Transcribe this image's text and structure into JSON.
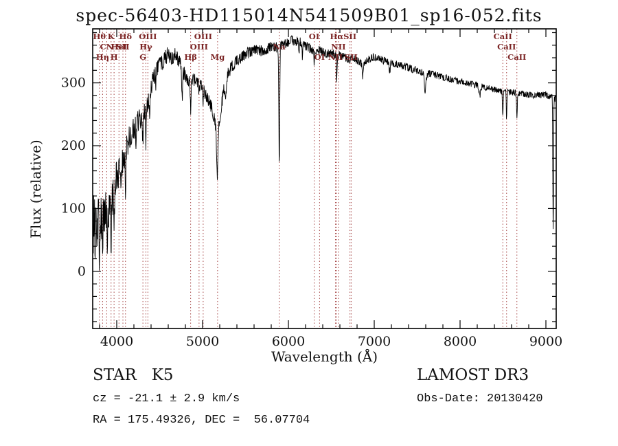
{
  "title": "spec-56403-HD115014N541509B01_sp16-052.fits",
  "footer": {
    "class_label": "STAR   K5",
    "survey": "LAMOST DR3",
    "cz": "cz = -21.1 ± 2.9 km/s",
    "obs_date": "Obs-Date: 20130420",
    "ra_dec": "RA = 175.49326, DEC =  56.07704"
  },
  "chart_data": {
    "type": "line",
    "title": "spec-56403-HD115014N541509B01_sp16-052.fits",
    "xlabel": "Wavelength (Å)",
    "ylabel": "Flux (relative)",
    "xlim": [
      3720,
      9120
    ],
    "ylim": [
      -91,
      386
    ],
    "x_major_ticks": [
      4000,
      5000,
      6000,
      7000,
      8000,
      9000
    ],
    "y_major_ticks": [
      0,
      100,
      200,
      300
    ],
    "x_minor_step": 200,
    "y_minor_step": 20,
    "grid": false,
    "legend": "none",
    "line_color": "#000000",
    "frame_color": "#000000",
    "marker_line_color": "#a34040",
    "spectral_lines": [
      {
        "label": "Hθ",
        "wl": 3798,
        "row": 0
      },
      {
        "label": "Hη",
        "wl": 3835,
        "row": 2
      },
      {
        "label": "CN",
        "wl": 3883,
        "row": 1
      },
      {
        "label": "K",
        "wl": 3934,
        "row": 0
      },
      {
        "label": "H",
        "wl": 3969,
        "row": 2
      },
      {
        "label": "HeI",
        "wl": 4026,
        "row": 1
      },
      {
        "label": "SII",
        "wl": 4072,
        "row": 1
      },
      {
        "label": "Hδ",
        "wl": 4102,
        "row": 0
      },
      {
        "label": "G",
        "wl": 4305,
        "row": 2
      },
      {
        "label": "Hγ",
        "wl": 4340,
        "row": 1
      },
      {
        "label": "OIII",
        "wl": 4363,
        "row": 0
      },
      {
        "label": "Hβ",
        "wl": 4861,
        "row": 2
      },
      {
        "label": "OIII",
        "wl": 4959,
        "row": 1
      },
      {
        "label": "OIII",
        "wl": 5007,
        "row": 0
      },
      {
        "label": "Mg",
        "wl": 5175,
        "row": 2
      },
      {
        "label": "Na",
        "wl": 5894,
        "row": 1
      },
      {
        "label": "OI",
        "wl": 6300,
        "row": 0
      },
      {
        "label": "OI",
        "wl": 6363,
        "row": 2
      },
      {
        "label": "NII",
        "wl": 6548,
        "row": 2
      },
      {
        "label": "Hα",
        "wl": 6563,
        "row": 0
      },
      {
        "label": "NII",
        "wl": 6583,
        "row": 1
      },
      {
        "label": "SII",
        "wl": 6717,
        "row": 0
      },
      {
        "label": "SII",
        "wl": 6731,
        "row": 2
      },
      {
        "label": "CaII",
        "wl": 8498,
        "row": 0
      },
      {
        "label": "CaII",
        "wl": 8542,
        "row": 1
      },
      {
        "label": "CaII",
        "wl": 8662,
        "row": 2
      }
    ],
    "spectrum": {
      "samples": 1500,
      "seed": 20130420,
      "anchors": [
        [
          3720,
          40
        ],
        [
          3735,
          90
        ],
        [
          3750,
          60
        ],
        [
          3770,
          85
        ],
        [
          3790,
          70
        ],
        [
          3820,
          85
        ],
        [
          3850,
          95
        ],
        [
          3880,
          88
        ],
        [
          3910,
          100
        ],
        [
          3940,
          110
        ],
        [
          3970,
          125
        ],
        [
          4000,
          150
        ],
        [
          4030,
          160
        ],
        [
          4060,
          170
        ],
        [
          4090,
          180
        ],
        [
          4120,
          200
        ],
        [
          4160,
          215
        ],
        [
          4200,
          228
        ],
        [
          4240,
          238
        ],
        [
          4280,
          244
        ],
        [
          4320,
          254
        ],
        [
          4360,
          268
        ],
        [
          4400,
          292
        ],
        [
          4440,
          314
        ],
        [
          4480,
          325
        ],
        [
          4520,
          331
        ],
        [
          4560,
          340
        ],
        [
          4600,
          346
        ],
        [
          4640,
          338
        ],
        [
          4680,
          345
        ],
        [
          4720,
          337
        ],
        [
          4760,
          324
        ],
        [
          4800,
          311
        ],
        [
          4840,
          304
        ],
        [
          4880,
          308
        ],
        [
          4920,
          304
        ],
        [
          4960,
          297
        ],
        [
          5000,
          291
        ],
        [
          5040,
          281
        ],
        [
          5080,
          269
        ],
        [
          5120,
          254
        ],
        [
          5160,
          224
        ],
        [
          5200,
          244
        ],
        [
          5240,
          284
        ],
        [
          5280,
          309
        ],
        [
          5320,
          321
        ],
        [
          5360,
          329
        ],
        [
          5400,
          335
        ],
        [
          5440,
          339
        ],
        [
          5480,
          343
        ],
        [
          5520,
          347
        ],
        [
          5560,
          349
        ],
        [
          5600,
          351
        ],
        [
          5640,
          352
        ],
        [
          5680,
          351
        ],
        [
          5720,
          353
        ],
        [
          5760,
          355
        ],
        [
          5800,
          357
        ],
        [
          5840,
          356
        ],
        [
          5880,
          357
        ],
        [
          5920,
          359
        ],
        [
          5960,
          362
        ],
        [
          6000,
          365
        ],
        [
          6040,
          369
        ],
        [
          6080,
          365
        ],
        [
          6120,
          367
        ],
        [
          6160,
          363
        ],
        [
          6200,
          359
        ],
        [
          6240,
          356
        ],
        [
          6280,
          353
        ],
        [
          6320,
          351
        ],
        [
          6360,
          352
        ],
        [
          6400,
          349
        ],
        [
          6440,
          346
        ],
        [
          6480,
          348
        ],
        [
          6520,
          346
        ],
        [
          6560,
          343
        ],
        [
          6600,
          344
        ],
        [
          6640,
          341
        ],
        [
          6680,
          339
        ],
        [
          6720,
          337
        ],
        [
          6760,
          339
        ],
        [
          6800,
          336
        ],
        [
          6840,
          331
        ],
        [
          6880,
          333
        ],
        [
          6920,
          336
        ],
        [
          6960,
          339
        ],
        [
          7000,
          341
        ],
        [
          7060,
          338
        ],
        [
          7120,
          335
        ],
        [
          7180,
          333
        ],
        [
          7240,
          331
        ],
        [
          7300,
          328
        ],
        [
          7360,
          326
        ],
        [
          7420,
          323
        ],
        [
          7480,
          321
        ],
        [
          7540,
          318
        ],
        [
          7600,
          313
        ],
        [
          7660,
          315
        ],
        [
          7720,
          312
        ],
        [
          7780,
          310
        ],
        [
          7840,
          308
        ],
        [
          7900,
          305
        ],
        [
          7960,
          303
        ],
        [
          8020,
          302
        ],
        [
          8080,
          300
        ],
        [
          8140,
          298
        ],
        [
          8200,
          296
        ],
        [
          8260,
          294
        ],
        [
          8320,
          292
        ],
        [
          8380,
          290
        ],
        [
          8440,
          288
        ],
        [
          8500,
          286
        ],
        [
          8560,
          285
        ],
        [
          8620,
          285
        ],
        [
          8680,
          283
        ],
        [
          8740,
          282
        ],
        [
          8800,
          281
        ],
        [
          8860,
          280
        ],
        [
          8920,
          280
        ],
        [
          8980,
          282
        ],
        [
          9040,
          279
        ],
        [
          9100,
          275
        ],
        [
          9120,
          274
        ]
      ],
      "absorption_lines": [
        [
          3798,
          35,
          4
        ],
        [
          3835,
          35,
          4
        ],
        [
          3889,
          30,
          4
        ],
        [
          3934,
          55,
          4
        ],
        [
          3969,
          55,
          4
        ],
        [
          4045,
          30,
          4
        ],
        [
          4102,
          60,
          4
        ],
        [
          4226,
          45,
          4
        ],
        [
          4305,
          38,
          6
        ],
        [
          4340,
          55,
          4
        ],
        [
          4383,
          35,
          4
        ],
        [
          4455,
          25,
          4
        ],
        [
          4763,
          45,
          6
        ],
        [
          4861,
          52,
          4
        ],
        [
          4959,
          18,
          3
        ],
        [
          5007,
          22,
          3
        ],
        [
          5172,
          78,
          7
        ],
        [
          5270,
          28,
          5
        ],
        [
          5894,
          193,
          5
        ],
        [
          6122,
          24,
          4
        ],
        [
          6162,
          20,
          4
        ],
        [
          6300,
          20,
          3
        ],
        [
          6563,
          46,
          4
        ],
        [
          6867,
          22,
          8
        ],
        [
          7180,
          14,
          8
        ],
        [
          7594,
          26,
          9
        ],
        [
          8230,
          16,
          8
        ],
        [
          8498,
          36,
          4
        ],
        [
          8542,
          44,
          4
        ],
        [
          8662,
          42,
          4
        ],
        [
          9085,
          220,
          4
        ]
      ],
      "noise_profile": [
        [
          3720,
          48
        ],
        [
          3800,
          44
        ],
        [
          3900,
          36
        ],
        [
          4000,
          27
        ],
        [
          4150,
          21
        ],
        [
          4300,
          16
        ],
        [
          4500,
          13
        ],
        [
          4800,
          11
        ],
        [
          5200,
          10
        ],
        [
          5600,
          9
        ],
        [
          6000,
          8
        ],
        [
          6400,
          7
        ],
        [
          7000,
          6
        ],
        [
          7600,
          6
        ],
        [
          8200,
          5
        ],
        [
          8800,
          5
        ],
        [
          9120,
          6
        ]
      ]
    }
  }
}
